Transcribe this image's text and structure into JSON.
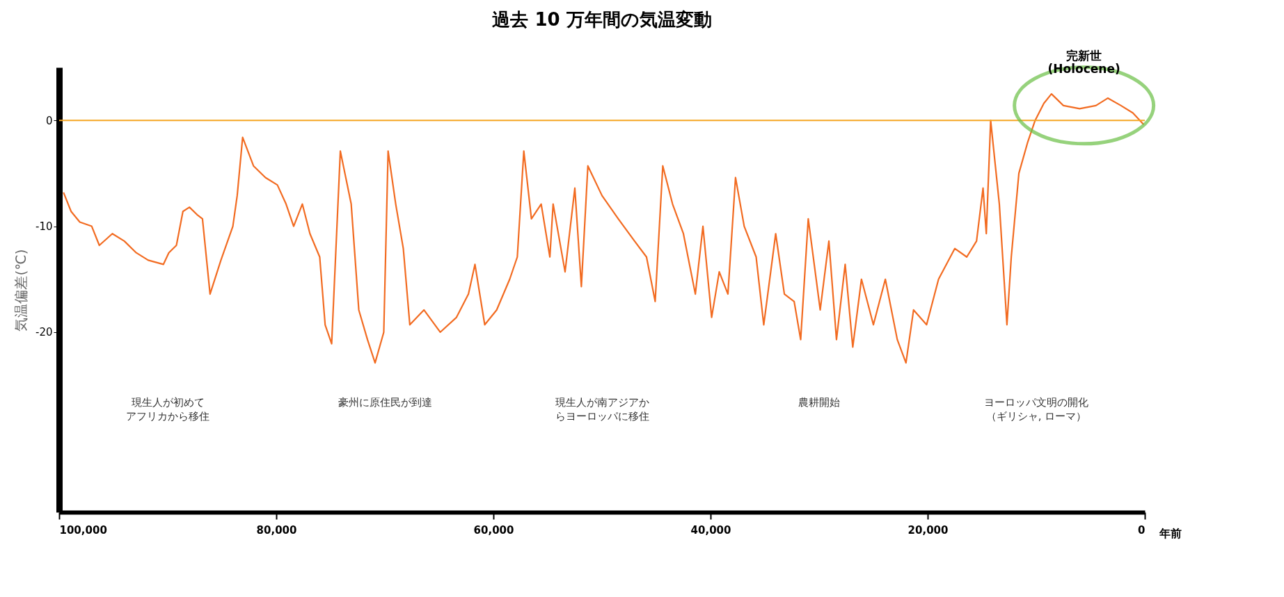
{
  "chart_data": {
    "type": "line",
    "title": "過去 10 万年間の気温変動",
    "xlabel": "年前",
    "ylabel": "気温偏差(℃)",
    "x": [
      99600,
      98900,
      98100,
      97000,
      96300,
      95100,
      94000,
      92900,
      91800,
      90400,
      89900,
      89200,
      88600,
      88000,
      87300,
      86800,
      86100,
      85100,
      84000,
      83600,
      83100,
      82100,
      81000,
      79900,
      79100,
      78400,
      77600,
      76900,
      76000,
      75500,
      74900,
      74100,
      73100,
      72400,
      71600,
      70900,
      70100,
      69700,
      69000,
      68300,
      67700,
      66400,
      64900,
      63400,
      62300,
      61700,
      60800,
      59700,
      58500,
      57800,
      57200,
      56500,
      55600,
      54800,
      54500,
      53400,
      52500,
      51900,
      51300,
      50000,
      48500,
      47000,
      45900,
      45100,
      44400,
      43500,
      42500,
      41400,
      40700,
      39900,
      39200,
      38400,
      37700,
      36900,
      35800,
      35100,
      34000,
      33200,
      32300,
      31700,
      31000,
      29900,
      29100,
      28400,
      27600,
      26900,
      26100,
      25000,
      23900,
      22800,
      22000,
      21300,
      20100,
      19000,
      17500,
      16400,
      15500,
      14900,
      14600,
      14200,
      13400,
      12700,
      12300,
      11600,
      10800,
      10100,
      9300,
      8600,
      7500,
      6000,
      4500,
      3400,
      2200,
      1100,
      100
    ],
    "series": [
      {
        "color": "#f26b21",
        "values": [
          -6.8,
          -8.6,
          -9.6,
          -10,
          -11.8,
          -10.7,
          -11.4,
          -12.5,
          -13.2,
          -13.6,
          -12.5,
          -11.8,
          -8.6,
          -8.2,
          -8.9,
          -9.3,
          -16.4,
          -13.2,
          -10,
          -7.1,
          -1.6,
          -4.3,
          -5.4,
          -6.1,
          -7.9,
          -10,
          -7.9,
          -10.7,
          -12.9,
          -19.3,
          -21.1,
          -2.9,
          -7.9,
          -17.9,
          -20.7,
          -22.9,
          -20,
          -2.9,
          -7.9,
          -12.1,
          -19.3,
          -17.9,
          -20,
          -18.6,
          -16.4,
          -13.6,
          -19.3,
          -17.9,
          -15,
          -12.9,
          -2.9,
          -9.3,
          -7.9,
          -12.9,
          -7.9,
          -14.3,
          -6.4,
          -15.7,
          -4.3,
          -7.1,
          -9.3,
          -11.4,
          -12.9,
          -17.1,
          -4.3,
          -7.9,
          -10.7,
          -16.4,
          -10,
          -18.6,
          -14.3,
          -16.4,
          -5.4,
          -10,
          -12.9,
          -19.3,
          -10.7,
          -16.4,
          -17.1,
          -20.7,
          -9.3,
          -17.9,
          -11.4,
          -20.7,
          -13.6,
          -21.4,
          -15,
          -19.3,
          -15,
          -20.7,
          -22.9,
          -17.9,
          -19.3,
          -15,
          -12.1,
          -12.9,
          -11.4,
          -6.4,
          -10.7,
          0,
          -7.9,
          -19.3,
          -12.9,
          -5,
          -2.1,
          0,
          1.6,
          2.5,
          1.4,
          1.1,
          1.4,
          2.1,
          1.4,
          0.7,
          -0.4
        ]
      }
    ],
    "xlim": [
      100000,
      0
    ],
    "xticks": [
      {
        "value": 100000,
        "label": "100,000"
      },
      {
        "value": 80000,
        "label": "80,000"
      },
      {
        "value": 60000,
        "label": "60,000"
      },
      {
        "value": 40000,
        "label": "40,000"
      },
      {
        "value": 20000,
        "label": "20,000"
      },
      0
    ],
    "ylim": [
      -37,
      5
    ],
    "yticks": [
      0,
      -10,
      -20
    ],
    "ref_lines": [
      {
        "axis": "y",
        "value": 0,
        "color": "#f5a623"
      }
    ],
    "annotations": [
      {
        "text": "完新世\n(Holocene)",
        "x": 5600,
        "y": 1.4
      },
      "現生人が初めてアフリカから移住",
      "豪州に原住民が到達",
      "現生人が南アジアからヨーロッパに移住",
      "農耕開始",
      "ヨーロッパ文明の開化（ギリシャ, ローマ）"
    ],
    "grid": false
  }
}
